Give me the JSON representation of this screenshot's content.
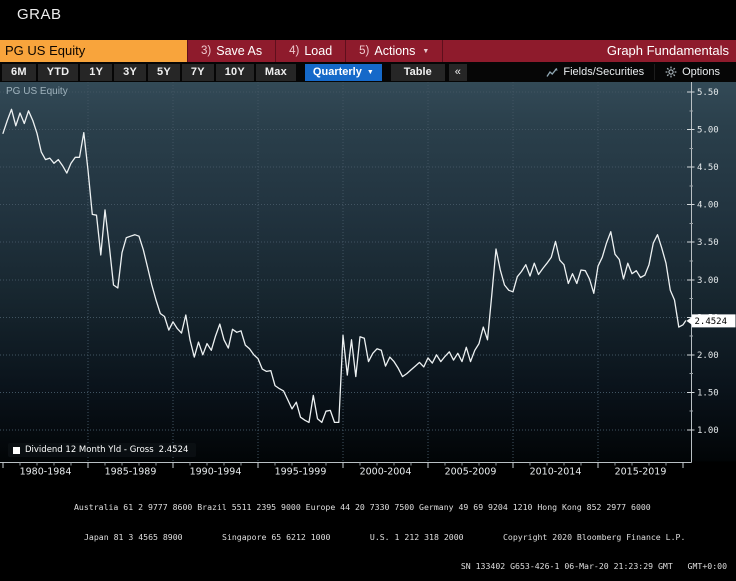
{
  "window": {
    "grab_label": "GRAB"
  },
  "command_bar": {
    "ticker": "PG US Equity",
    "buttons": [
      {
        "name": "save-as-button",
        "key": "3)",
        "label": "Save As",
        "has_caret": false
      },
      {
        "name": "load-button",
        "key": "4)",
        "label": "Load",
        "has_caret": false
      },
      {
        "name": "actions-button",
        "key": "5)",
        "label": "Actions",
        "has_caret": true
      }
    ],
    "title": "Graph Fundamentals",
    "colors": {
      "bar": "#8E1B2C",
      "ticker_bg": "#F8A43C"
    }
  },
  "range_bar": {
    "ranges": [
      "6M",
      "YTD",
      "1Y",
      "3Y",
      "5Y",
      "7Y",
      "10Y",
      "Max"
    ],
    "period_selector": {
      "value": "Quarterly"
    },
    "table_label": "Table",
    "collapse_label": "«",
    "fields_securities_label": "Fields/Securities",
    "options_label": "Options",
    "colors": {
      "selected_period_bg": "#1569C9"
    }
  },
  "chart": {
    "security_label": "PG US Equity",
    "legend": {
      "series_label": "Dividend 12 Month Yld - Gross",
      "value": "2.4524"
    },
    "last_value_label": "2.4524"
  },
  "chart_data": {
    "type": "line",
    "title": "PG US Equity - Dividend 12 Month Yield (Gross), Quarterly",
    "xlabel": "",
    "ylabel": "Dividend 12 Month Yld - Gross",
    "ylim": [
      0.57,
      5.63
    ],
    "xlim": [
      1980,
      2020.3
    ],
    "y_ticks": [
      1.0,
      1.5,
      2.0,
      2.5,
      3.0,
      3.5,
      4.0,
      4.5,
      5.0,
      5.5
    ],
    "x_boundaries": [
      1980,
      1985,
      1990,
      1995,
      2000,
      2005,
      2010,
      2015,
      2020
    ],
    "x_tick_labels": [
      "1980-1984",
      "1985-1989",
      "1990-1994",
      "1995-1999",
      "2000-2004",
      "2005-2009",
      "2010-2014",
      "2015-2019"
    ],
    "grid": "dotted",
    "legend_position": "bottom-left",
    "line_color": "#EDF1F2",
    "series": [
      {
        "name": "Dividend 12 Month Yld - Gross",
        "x_start": 1980.0,
        "x_step": 0.25,
        "values": [
          4.95,
          5.12,
          5.27,
          5.05,
          5.22,
          5.08,
          5.25,
          5.12,
          4.95,
          4.7,
          4.6,
          4.62,
          4.55,
          4.6,
          4.52,
          4.42,
          4.55,
          4.63,
          4.63,
          4.96,
          4.46,
          3.87,
          3.86,
          3.33,
          3.93,
          3.45,
          2.93,
          2.89,
          3.36,
          3.56,
          3.58,
          3.6,
          3.58,
          3.4,
          3.17,
          2.93,
          2.73,
          2.55,
          2.51,
          2.33,
          2.44,
          2.35,
          2.29,
          2.53,
          2.2,
          1.97,
          2.17,
          2.0,
          2.15,
          2.06,
          2.25,
          2.41,
          2.2,
          2.09,
          2.34,
          2.3,
          2.32,
          2.13,
          2.08,
          2.0,
          1.95,
          1.81,
          1.78,
          1.79,
          1.59,
          1.55,
          1.52,
          1.4,
          1.28,
          1.37,
          1.17,
          1.13,
          1.1,
          1.46,
          1.15,
          1.1,
          1.25,
          1.26,
          1.1,
          1.1,
          2.26,
          1.73,
          2.2,
          1.71,
          2.24,
          2.22,
          1.91,
          2.02,
          2.08,
          2.06,
          1.85,
          1.97,
          1.91,
          1.82,
          1.71,
          1.75,
          1.8,
          1.85,
          1.9,
          1.84,
          1.96,
          1.89,
          2.0,
          1.91,
          1.98,
          2.04,
          1.93,
          2.02,
          1.91,
          2.1,
          1.91,
          2.06,
          2.15,
          2.37,
          2.2,
          2.8,
          3.41,
          3.13,
          2.93,
          2.86,
          2.84,
          3.04,
          3.11,
          3.2,
          3.05,
          3.22,
          3.07,
          3.15,
          3.22,
          3.3,
          3.51,
          3.26,
          3.2,
          2.95,
          3.08,
          2.95,
          3.13,
          3.12,
          3.01,
          2.82,
          3.18,
          3.3,
          3.49,
          3.64,
          3.34,
          3.27,
          3.01,
          3.22,
          3.08,
          3.12,
          3.03,
          3.06,
          3.2,
          3.49,
          3.6,
          3.42,
          3.22,
          2.86,
          2.73,
          2.37,
          2.4
        ],
        "last_point": {
          "x": 2020.15,
          "y": 2.4524
        }
      }
    ]
  },
  "footer": {
    "lines": [
      "Australia 61 2 9777 8600 Brazil 5511 2395 9000 Europe 44 20 7330 7500 Germany 49 69 9204 1210 Hong Kong 852 2977 6000",
      "Japan 81 3 4565 8900        Singapore 65 6212 1000        U.S. 1 212 318 2000        Copyright 2020 Bloomberg Finance L.P.",
      "SN 133402 G653-426-1 06-Mar-20 21:23:29 GMT   GMT+0:00"
    ]
  }
}
